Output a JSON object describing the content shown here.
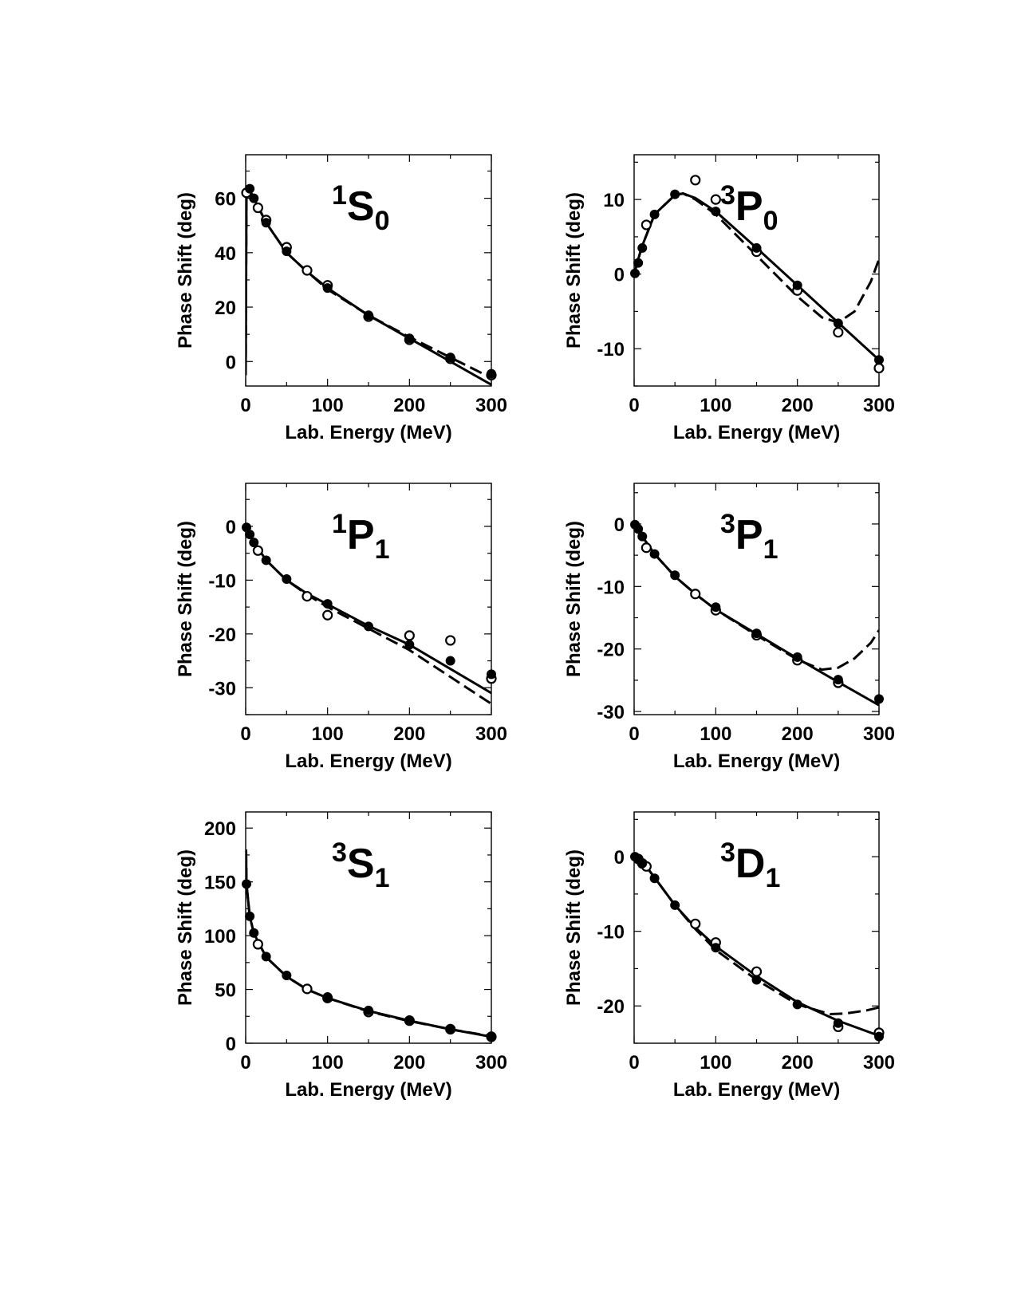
{
  "chart_data": [
    {
      "type": "line",
      "title_sup": "1",
      "title_main": "S",
      "title_sub": "0",
      "xlabel": "Lab. Energy (MeV)",
      "ylabel": "Phase Shift (deg)",
      "xlim": [
        0,
        300
      ],
      "ylim": [
        -9,
        76
      ],
      "xticks": [
        0,
        100,
        200,
        300
      ],
      "yticks": [
        0,
        20,
        40,
        60
      ],
      "solid": [
        [
          0,
          -5
        ],
        [
          1,
          62
        ],
        [
          5,
          63
        ],
        [
          10,
          60
        ],
        [
          25,
          51
        ],
        [
          50,
          40
        ],
        [
          75,
          33
        ],
        [
          100,
          27
        ],
        [
          150,
          17
        ],
        [
          200,
          8.5
        ],
        [
          250,
          0
        ],
        [
          300,
          -8.5
        ]
      ],
      "dashed": [
        [
          0,
          -5
        ],
        [
          1,
          62
        ],
        [
          5,
          63
        ],
        [
          10,
          60
        ],
        [
          25,
          51
        ],
        [
          50,
          40
        ],
        [
          75,
          33
        ],
        [
          100,
          26.5
        ],
        [
          150,
          17
        ],
        [
          200,
          9
        ],
        [
          250,
          1.5
        ],
        [
          300,
          -6
        ]
      ],
      "filled": [
        [
          5,
          63.5
        ],
        [
          10,
          60
        ],
        [
          25,
          51
        ],
        [
          50,
          40.5
        ],
        [
          100,
          27
        ],
        [
          150,
          17
        ],
        [
          200,
          8.5
        ],
        [
          250,
          1.5
        ],
        [
          300,
          -4.5
        ]
      ],
      "open": [
        [
          1,
          62
        ],
        [
          15,
          56.5
        ],
        [
          25,
          52
        ],
        [
          50,
          42
        ],
        [
          75,
          33.5
        ],
        [
          100,
          28
        ],
        [
          150,
          16.5
        ],
        [
          200,
          8
        ],
        [
          250,
          1
        ],
        [
          300,
          -5
        ]
      ]
    },
    {
      "type": "line",
      "title_sup": "3",
      "title_main": "P",
      "title_sub": "0",
      "xlabel": "Lab. Energy (MeV)",
      "ylabel": "Phase Shift (deg)",
      "xlim": [
        0,
        300
      ],
      "ylim": [
        -15,
        16
      ],
      "xticks": [
        0,
        100,
        200,
        300
      ],
      "yticks": [
        -10,
        0,
        10
      ],
      "solid": [
        [
          0,
          0
        ],
        [
          5,
          2
        ],
        [
          10,
          3.8
        ],
        [
          25,
          8
        ],
        [
          50,
          10.6
        ],
        [
          60,
          10.8
        ],
        [
          75,
          10.2
        ],
        [
          100,
          8.4
        ],
        [
          150,
          3.5
        ],
        [
          200,
          -1.5
        ],
        [
          250,
          -6.5
        ],
        [
          300,
          -11.5
        ]
      ],
      "dashed": [
        [
          0,
          0
        ],
        [
          5,
          2
        ],
        [
          10,
          3.8
        ],
        [
          25,
          8
        ],
        [
          50,
          10.6
        ],
        [
          60,
          10.8
        ],
        [
          75,
          10
        ],
        [
          100,
          8
        ],
        [
          150,
          2.5
        ],
        [
          200,
          -3
        ],
        [
          230,
          -5.8
        ],
        [
          250,
          -6.5
        ],
        [
          270,
          -5
        ],
        [
          290,
          -1
        ],
        [
          300,
          2
        ]
      ],
      "filled": [
        [
          1,
          0.1
        ],
        [
          5,
          1.5
        ],
        [
          10,
          3.5
        ],
        [
          25,
          8
        ],
        [
          50,
          10.7
        ],
        [
          100,
          8.4
        ],
        [
          150,
          3.5
        ],
        [
          200,
          -1.5
        ],
        [
          250,
          -6.6
        ],
        [
          300,
          -11.5
        ]
      ],
      "open": [
        [
          15,
          6.6
        ],
        [
          75,
          12.6
        ],
        [
          100,
          10
        ],
        [
          150,
          3
        ],
        [
          200,
          -2.2
        ],
        [
          250,
          -7.8
        ],
        [
          300,
          -12.6
        ]
      ]
    },
    {
      "type": "line",
      "title_sup": "1",
      "title_main": "P",
      "title_sub": "1",
      "xlabel": "Lab. Energy (MeV)",
      "ylabel": "Phase Shift (deg)",
      "xlim": [
        0,
        300
      ],
      "ylim": [
        -35,
        8
      ],
      "xticks": [
        0,
        100,
        200,
        300
      ],
      "yticks": [
        -30,
        -20,
        -10,
        0
      ],
      "solid": [
        [
          0,
          0
        ],
        [
          5,
          -1.5
        ],
        [
          10,
          -3
        ],
        [
          25,
          -6.3
        ],
        [
          50,
          -10
        ],
        [
          75,
          -12.5
        ],
        [
          100,
          -14.5
        ],
        [
          150,
          -18.5
        ],
        [
          200,
          -22
        ],
        [
          250,
          -26.5
        ],
        [
          300,
          -31
        ]
      ],
      "dashed": [
        [
          0,
          0
        ],
        [
          5,
          -1.5
        ],
        [
          10,
          -3
        ],
        [
          25,
          -6.3
        ],
        [
          50,
          -10
        ],
        [
          75,
          -12.7
        ],
        [
          100,
          -15
        ],
        [
          150,
          -19
        ],
        [
          200,
          -23
        ],
        [
          250,
          -28
        ],
        [
          300,
          -33
        ]
      ],
      "filled": [
        [
          1,
          -0.2
        ],
        [
          5,
          -1.5
        ],
        [
          10,
          -3
        ],
        [
          25,
          -6.3
        ],
        [
          50,
          -9.8
        ],
        [
          100,
          -14.4
        ],
        [
          150,
          -18.6
        ],
        [
          200,
          -22
        ],
        [
          250,
          -25
        ],
        [
          300,
          -27.5
        ]
      ],
      "open": [
        [
          15,
          -4.5
        ],
        [
          75,
          -13
        ],
        [
          100,
          -16.5
        ],
        [
          200,
          -20.3
        ],
        [
          250,
          -21.2
        ],
        [
          300,
          -28.3
        ]
      ]
    },
    {
      "type": "line",
      "title_sup": "3",
      "title_main": "P",
      "title_sub": "1",
      "xlabel": "Lab. Energy (MeV)",
      "ylabel": "Phase Shift (deg)",
      "xlim": [
        0,
        300
      ],
      "ylim": [
        -30.5,
        6.5
      ],
      "xticks": [
        0,
        100,
        200,
        300
      ],
      "yticks": [
        -30,
        -20,
        -10,
        0
      ],
      "solid": [
        [
          0,
          0
        ],
        [
          5,
          -1
        ],
        [
          10,
          -2
        ],
        [
          25,
          -4.8
        ],
        [
          50,
          -8.4
        ],
        [
          75,
          -11.2
        ],
        [
          100,
          -13.7
        ],
        [
          150,
          -17.6
        ],
        [
          200,
          -21.5
        ],
        [
          250,
          -25.3
        ],
        [
          300,
          -29
        ]
      ],
      "dashed": [
        [
          0,
          0
        ],
        [
          5,
          -1
        ],
        [
          10,
          -2
        ],
        [
          25,
          -4.8
        ],
        [
          50,
          -8.4
        ],
        [
          75,
          -11.2
        ],
        [
          100,
          -13.7
        ],
        [
          150,
          -17.8
        ],
        [
          200,
          -21.7
        ],
        [
          230,
          -23.3
        ],
        [
          250,
          -23
        ],
        [
          270,
          -21.5
        ],
        [
          290,
          -19
        ],
        [
          300,
          -17
        ]
      ],
      "filled": [
        [
          1,
          -0.1
        ],
        [
          5,
          -0.8
        ],
        [
          10,
          -2
        ],
        [
          25,
          -4.8
        ],
        [
          50,
          -8.2
        ],
        [
          100,
          -13.3
        ],
        [
          150,
          -17.5
        ],
        [
          200,
          -21.3
        ],
        [
          250,
          -24.9
        ],
        [
          300,
          -28
        ]
      ],
      "open": [
        [
          15,
          -3.8
        ],
        [
          75,
          -11.2
        ],
        [
          100,
          -13.8
        ],
        [
          150,
          -17.8
        ],
        [
          200,
          -21.8
        ],
        [
          250,
          -25.4
        ]
      ]
    },
    {
      "type": "line",
      "title_sup": "3",
      "title_main": "S",
      "title_sub": "1",
      "xlabel": "Lab. Energy (MeV)",
      "ylabel": "Phase Shift (deg)",
      "xlim": [
        0,
        300
      ],
      "ylim": [
        0,
        215
      ],
      "xticks": [
        0,
        100,
        200,
        300
      ],
      "yticks": [
        0,
        50,
        100,
        150,
        200
      ],
      "solid": [
        [
          0.5,
          180
        ],
        [
          1,
          148
        ],
        [
          5,
          118
        ],
        [
          10,
          102
        ],
        [
          25,
          80
        ],
        [
          50,
          62
        ],
        [
          75,
          50
        ],
        [
          100,
          42
        ],
        [
          150,
          30
        ],
        [
          200,
          21
        ],
        [
          250,
          13
        ],
        [
          300,
          6
        ]
      ],
      "dashed": [
        [
          0.5,
          180
        ],
        [
          1,
          148
        ],
        [
          5,
          118
        ],
        [
          10,
          102
        ],
        [
          25,
          80
        ],
        [
          50,
          62
        ],
        [
          75,
          50
        ],
        [
          100,
          42
        ],
        [
          150,
          29.5
        ],
        [
          200,
          20.5
        ],
        [
          250,
          13
        ],
        [
          300,
          6.5
        ]
      ],
      "filled": [
        [
          1,
          148
        ],
        [
          5,
          118
        ],
        [
          10,
          102.5
        ],
        [
          25,
          80.5
        ],
        [
          50,
          63
        ],
        [
          100,
          43
        ],
        [
          150,
          30.5
        ],
        [
          200,
          21.5
        ],
        [
          250,
          13.5
        ],
        [
          300,
          6.5
        ]
      ],
      "open": [
        [
          15,
          92
        ],
        [
          75,
          50.5
        ],
        [
          100,
          42
        ],
        [
          150,
          29
        ],
        [
          200,
          21
        ],
        [
          250,
          13
        ],
        [
          300,
          6
        ]
      ]
    },
    {
      "type": "line",
      "title_sup": "3",
      "title_main": "D",
      "title_sub": "1",
      "xlabel": "Lab. Energy (MeV)",
      "ylabel": "Phase Shift (deg)",
      "xlim": [
        0,
        300
      ],
      "ylim": [
        -25,
        6
      ],
      "xticks": [
        0,
        100,
        200,
        300
      ],
      "yticks": [
        -20,
        -10,
        0
      ],
      "solid": [
        [
          0,
          0
        ],
        [
          5,
          -0.2
        ],
        [
          10,
          -0.6
        ],
        [
          25,
          -2.8
        ],
        [
          50,
          -6.5
        ],
        [
          75,
          -9.5
        ],
        [
          100,
          -12
        ],
        [
          150,
          -16
        ],
        [
          200,
          -19.5
        ],
        [
          250,
          -22
        ],
        [
          300,
          -24
        ]
      ],
      "dashed": [
        [
          0,
          0
        ],
        [
          5,
          -0.2
        ],
        [
          10,
          -0.6
        ],
        [
          25,
          -2.8
        ],
        [
          50,
          -6.5
        ],
        [
          75,
          -9.7
        ],
        [
          100,
          -12.5
        ],
        [
          150,
          -16.5
        ],
        [
          200,
          -19.8
        ],
        [
          240,
          -21.1
        ],
        [
          260,
          -21
        ],
        [
          285,
          -20.6
        ],
        [
          300,
          -20.2
        ]
      ],
      "filled": [
        [
          1,
          0
        ],
        [
          5,
          -0.3
        ],
        [
          10,
          -0.9
        ],
        [
          25,
          -2.9
        ],
        [
          50,
          -6.5
        ],
        [
          100,
          -12.2
        ],
        [
          150,
          -16.5
        ],
        [
          200,
          -19.8
        ],
        [
          250,
          -22.3
        ],
        [
          300,
          -24.1
        ]
      ],
      "open": [
        [
          5,
          -0.3
        ],
        [
          10,
          -0.9
        ],
        [
          15,
          -1.3
        ],
        [
          75,
          -9
        ],
        [
          100,
          -11.5
        ],
        [
          150,
          -15.4
        ],
        [
          250,
          -22.8
        ],
        [
          300,
          -23.6
        ]
      ]
    }
  ]
}
